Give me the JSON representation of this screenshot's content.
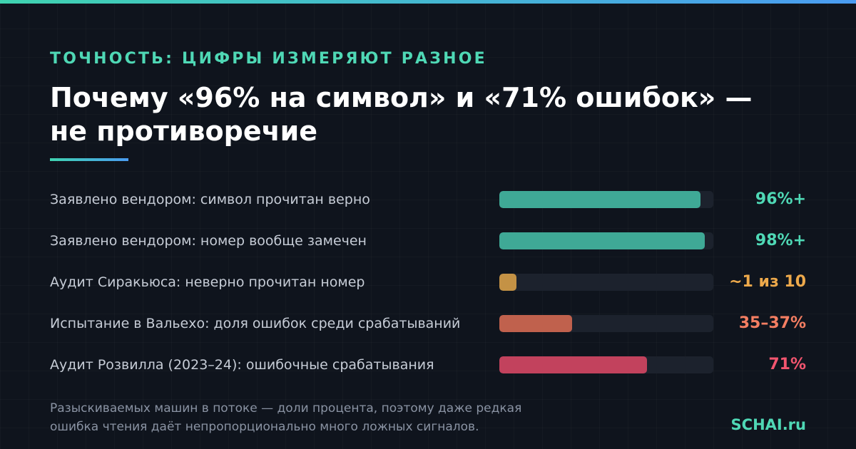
{
  "kicker": "ТОЧНОСТЬ: ЦИФРЫ ИЗМЕРЯЮТ РАЗНОЕ",
  "title_lines": [
    "Почему «96% на символ» и «71% ошибок» —",
    "не противоречие"
  ],
  "chart_data": {
    "type": "bar",
    "orientation": "horizontal",
    "scale": [
      0,
      100
    ],
    "categories": [
      "Заявлено вендором: символ прочитан верно",
      "Заявлено вендором: номер вообще замечен",
      "Аудит Сиракьюса: неверно прочитан номер",
      "Испытание в Вальехо: доля ошибок среди срабатываний",
      "Аудит Розвилла (2023–24): ошибочные срабатывания"
    ],
    "values": [
      96,
      98,
      10,
      36,
      71
    ],
    "value_labels": [
      "96%+",
      "98%+",
      "~1 из 10",
      "35–37%",
      "71%"
    ],
    "colors": [
      "#3fa996",
      "#3fa996",
      "#c49245",
      "#c0614d",
      "#c2425d"
    ],
    "value_label_colors": [
      "#4fd8b5",
      "#4fd8b5",
      "#eda94b",
      "#f47e62",
      "#f2556f"
    ]
  },
  "footnote_lines": [
    "Разыскиваемых машин в потоке — доли процента, поэтому даже редкая",
    "ошибка чтения даёт непропорционально много ложных сигналов."
  ],
  "brand": "SCHAI.ru"
}
